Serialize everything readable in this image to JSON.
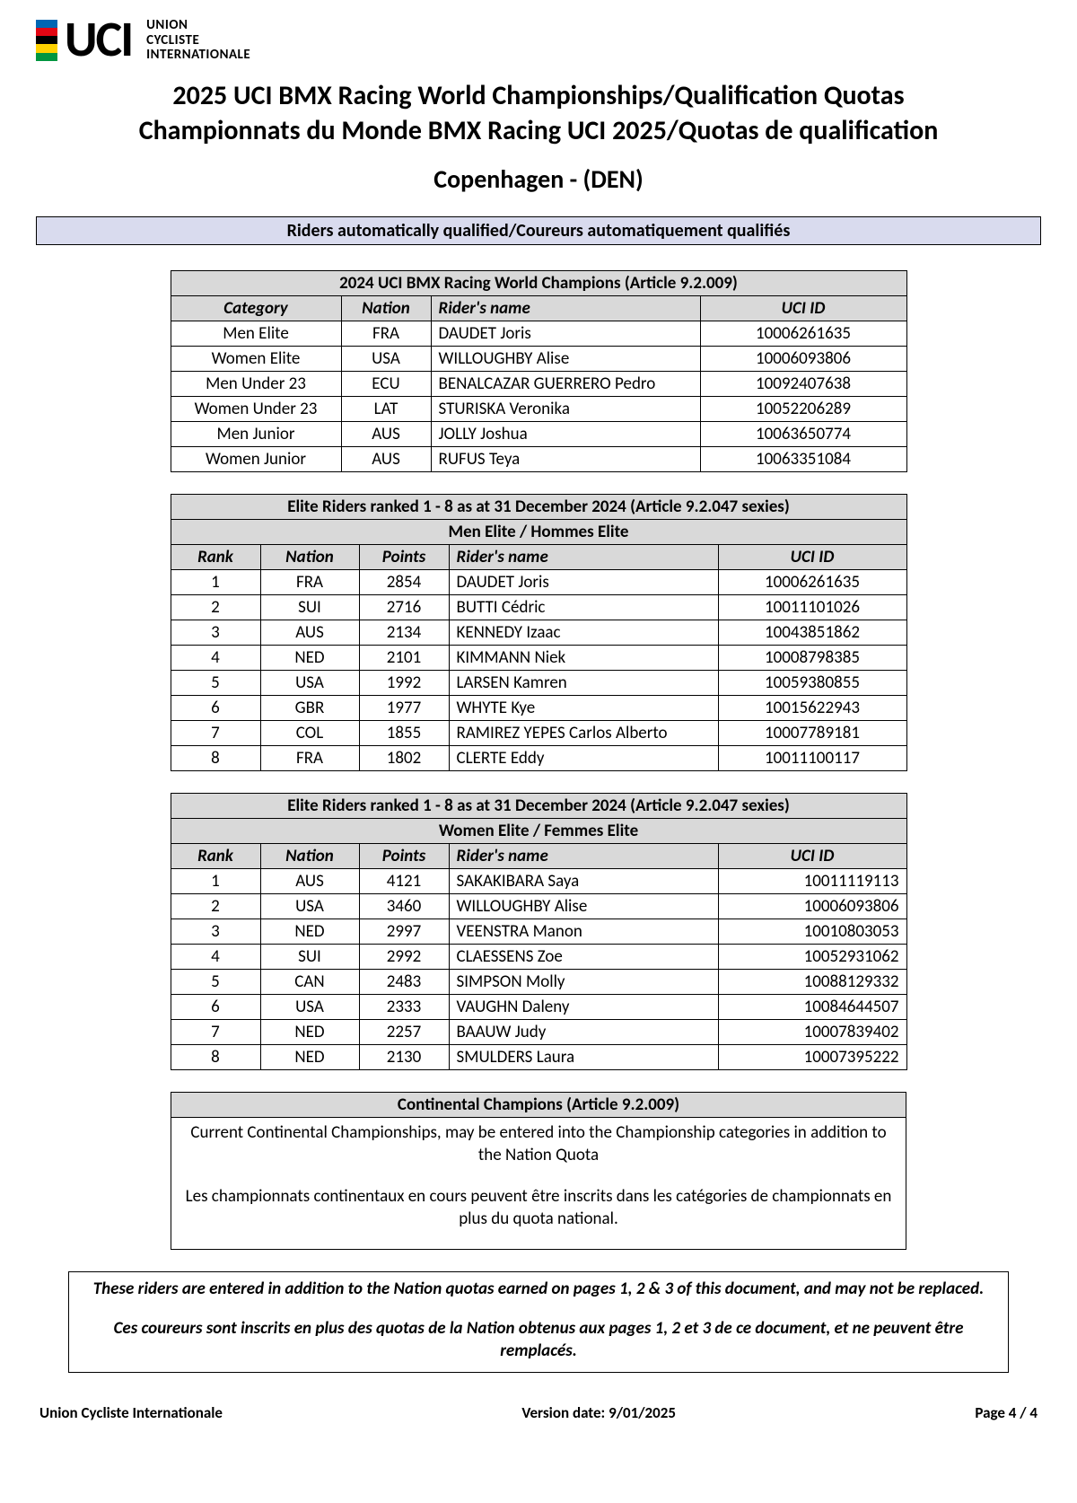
{
  "logo": {
    "stripe_colors": [
      "#0066b3",
      "#e30613",
      "#000000",
      "#ffd200",
      "#009640"
    ],
    "uci": "UCI",
    "org_line1": "UNION",
    "org_line2": "CYCLISTE",
    "org_line3": "INTERNATIONALE"
  },
  "titles": {
    "main": "2025 UCI BMX Racing World Championships/Qualification Quotas",
    "sub": "Championnats du Monde BMX Racing UCI 2025/Quotas de qualification",
    "location": "Copenhagen - (DEN)"
  },
  "banner": "Riders automatically qualified/Coureurs automatiquement qualifiés",
  "champions": {
    "title": "2024 UCI BMX Racing World Champions (Article 9.2.009)",
    "cols": {
      "category": "Category",
      "nation": "Nation",
      "rider": "Rider's name",
      "uciid": "UCI ID"
    },
    "rows": [
      {
        "category": "Men Elite",
        "nation": "FRA",
        "rider": "DAUDET Joris",
        "uciid": "10006261635"
      },
      {
        "category": "Women Elite",
        "nation": "USA",
        "rider": "WILLOUGHBY Alise",
        "uciid": "10006093806"
      },
      {
        "category": "Men Under 23",
        "nation": "ECU",
        "rider": "BENALCAZAR GUERRERO Pedro",
        "uciid": "10092407638"
      },
      {
        "category": "Women Under 23",
        "nation": "LAT",
        "rider": "STURISKA Veronika",
        "uciid": "10052206289"
      },
      {
        "category": "Men Junior",
        "nation": "AUS",
        "rider": "JOLLY Joshua",
        "uciid": "10063650774"
      },
      {
        "category": "Women Junior",
        "nation": "AUS",
        "rider": "RUFUS Teya",
        "uciid": "10063351084"
      }
    ]
  },
  "men_elite": {
    "title": "Elite Riders ranked 1 - 8 as at 31 December 2024 (Article 9.2.047 sexies)",
    "subtitle": "Men Elite /  Hommes Elite",
    "cols": {
      "rank": "Rank",
      "nation": "Nation",
      "points": "Points",
      "rider": "Rider's name",
      "uciid": "UCI ID"
    },
    "rows": [
      {
        "rank": "1",
        "nation": "FRA",
        "points": "2854",
        "rider": "DAUDET Joris",
        "uciid": "10006261635"
      },
      {
        "rank": "2",
        "nation": "SUI",
        "points": "2716",
        "rider": "BUTTI Cédric",
        "uciid": "10011101026"
      },
      {
        "rank": "3",
        "nation": "AUS",
        "points": "2134",
        "rider": "KENNEDY Izaac",
        "uciid": "10043851862"
      },
      {
        "rank": "4",
        "nation": "NED",
        "points": "2101",
        "rider": "KIMMANN Niek",
        "uciid": "10008798385"
      },
      {
        "rank": "5",
        "nation": "USA",
        "points": "1992",
        "rider": "LARSEN Kamren",
        "uciid": "10059380855"
      },
      {
        "rank": "6",
        "nation": "GBR",
        "points": "1977",
        "rider": "WHYTE Kye",
        "uciid": "10015622943"
      },
      {
        "rank": "7",
        "nation": "COL",
        "points": "1855",
        "rider": "RAMIREZ YEPES Carlos Alberto",
        "uciid": "10007789181"
      },
      {
        "rank": "8",
        "nation": "FRA",
        "points": "1802",
        "rider": "CLERTE Eddy",
        "uciid": "10011100117"
      }
    ]
  },
  "women_elite": {
    "title": "Elite Riders ranked 1 - 8 as at 31 December 2024 (Article 9.2.047 sexies)",
    "subtitle": "Women Elite /  Femmes Elite",
    "cols": {
      "rank": "Rank",
      "nation": "Nation",
      "points": "Points",
      "rider": "Rider's name",
      "uciid": "UCI ID"
    },
    "rows": [
      {
        "rank": "1",
        "nation": "AUS",
        "points": "4121",
        "rider": "SAKAKIBARA Saya",
        "uciid": "10011119113"
      },
      {
        "rank": "2",
        "nation": "USA",
        "points": "3460",
        "rider": "WILLOUGHBY Alise",
        "uciid": "10006093806"
      },
      {
        "rank": "3",
        "nation": "NED",
        "points": "2997",
        "rider": "VEENSTRA Manon",
        "uciid": "10010803053"
      },
      {
        "rank": "4",
        "nation": "SUI",
        "points": "2992",
        "rider": "CLAESSENS Zoe",
        "uciid": "10052931062"
      },
      {
        "rank": "5",
        "nation": "CAN",
        "points": "2483",
        "rider": "SIMPSON Molly",
        "uciid": "10088129332"
      },
      {
        "rank": "6",
        "nation": "USA",
        "points": "2333",
        "rider": "VAUGHN Daleny",
        "uciid": "10084644507"
      },
      {
        "rank": "7",
        "nation": "NED",
        "points": "2257",
        "rider": "BAAUW Judy",
        "uciid": "10007839402"
      },
      {
        "rank": "8",
        "nation": "NED",
        "points": "2130",
        "rider": "SMULDERS Laura",
        "uciid": "10007395222"
      }
    ]
  },
  "continental": {
    "title": "Continental Champions (Article 9.2.009)",
    "p1": "Current Continental Championships, may be entered into the Championship categories in addition to the Nation Quota",
    "p2": "Les championnats continentaux en cours peuvent être inscrits dans les catégories de championnats en plus du quota national."
  },
  "footer_note": {
    "p1": "These riders are entered in addition to the Nation quotas earned on pages 1, 2 & 3 of this document, and may not be replaced.",
    "p2": "Ces coureurs sont inscrits en plus des quotas de la Nation obtenus aux pages 1, 2 et 3 de ce document, et ne peuvent être remplacés."
  },
  "page_footer": {
    "left": "Union Cycliste Internationale",
    "center": "Version date: 9/01/2025",
    "right": "Page 4 / 4"
  },
  "widths": {
    "champions": {
      "category": 190,
      "nation": 100,
      "rider": 300,
      "uciid": 230
    },
    "ranked": {
      "rank": 100,
      "nation": 110,
      "points": 100,
      "rider": 300,
      "uciid": 210
    }
  }
}
